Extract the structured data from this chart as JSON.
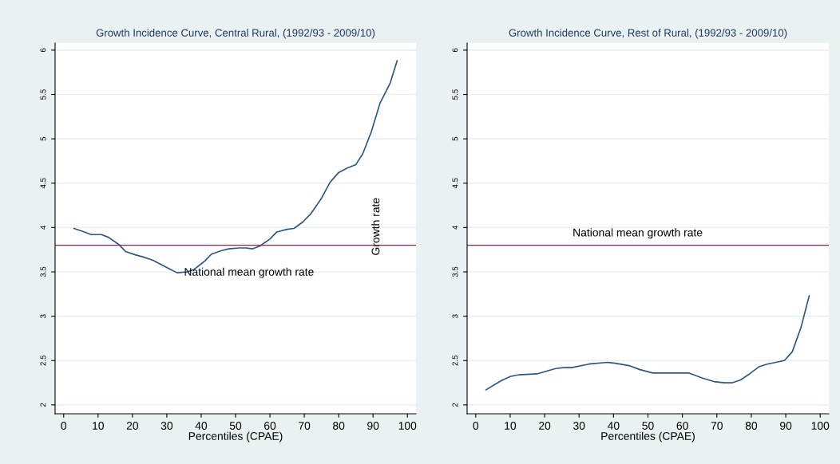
{
  "chart_data": [
    {
      "type": "line",
      "title": "Growth Incidence Curve, Central Rural, (1992/93 - 2009/10)",
      "xlabel": "Percentiles (CPAE)",
      "ylabel": "Growth rate",
      "series": [
        {
          "color": "#2c5784",
          "x": [
            3,
            6,
            8,
            11,
            13,
            16,
            18,
            21,
            23,
            26,
            28,
            31,
            33,
            36,
            38,
            41,
            43,
            46,
            48,
            51,
            53,
            55,
            57,
            60,
            62,
            65,
            67,
            69.5,
            72,
            75,
            77.5,
            80,
            82.5,
            85,
            87,
            89.5,
            92,
            95,
            97
          ],
          "values": [
            3.99,
            3.95,
            3.92,
            3.92,
            3.89,
            3.81,
            3.73,
            3.69,
            3.67,
            3.63,
            3.59,
            3.53,
            3.49,
            3.5,
            3.53,
            3.62,
            3.7,
            3.74,
            3.76,
            3.77,
            3.77,
            3.76,
            3.79,
            3.87,
            3.95,
            3.98,
            3.99,
            4.06,
            4.16,
            4.33,
            4.51,
            4.62,
            4.67,
            4.71,
            4.83,
            5.08,
            5.4,
            5.63,
            5.88
          ]
        }
      ],
      "xlim": [
        -2.5,
        102.5
      ],
      "ylim": [
        1.9,
        6.08
      ],
      "xticks": [
        0,
        10,
        20,
        30,
        40,
        50,
        60,
        70,
        80,
        90,
        100
      ],
      "yticks": [
        2,
        2.5,
        3,
        3.5,
        4,
        4.5,
        5,
        5.5,
        6
      ],
      "grid": "y",
      "ref_lines": [
        {
          "axis": "y",
          "value": 3.8,
          "color": "#a0204a"
        }
      ],
      "annotations": [
        {
          "text": "National mean growth rate",
          "x": 35,
          "y": 3.49
        }
      ]
    },
    {
      "type": "line",
      "title": "Growth Incidence Curve, Rest of Rural, (1992/93 - 2009/10)",
      "xlabel": "Percentiles (CPAE)",
      "series": [
        {
          "color": "#2c5784",
          "x": [
            3,
            7.3,
            10,
            12.6,
            17.8,
            23.2,
            25.5,
            27.8,
            32.8,
            38.2,
            40.5,
            44.8,
            47.5,
            51.4,
            56,
            59.5,
            61.8,
            66,
            69.5,
            72.2,
            74.5,
            76.8,
            79.5,
            82.2,
            84.6,
            89.6,
            91.9,
            94.4,
            96.8
          ],
          "values": [
            2.17,
            2.27,
            2.32,
            2.34,
            2.35,
            2.41,
            2.42,
            2.42,
            2.46,
            2.48,
            2.47,
            2.44,
            2.4,
            2.36,
            2.36,
            2.36,
            2.36,
            2.3,
            2.26,
            2.25,
            2.25,
            2.28,
            2.35,
            2.43,
            2.46,
            2.5,
            2.6,
            2.87,
            3.23
          ]
        }
      ],
      "xlim": [
        -2.5,
        102.5
      ],
      "ylim": [
        1.9,
        6.08
      ],
      "xticks": [
        0,
        10,
        20,
        30,
        40,
        50,
        60,
        70,
        80,
        90,
        100
      ],
      "yticks": [
        2,
        2.5,
        3,
        3.5,
        4,
        4.5,
        5,
        5.5,
        6
      ],
      "grid": "y",
      "ref_lines": [
        {
          "axis": "y",
          "value": 3.8,
          "color": "#a0204a"
        }
      ],
      "annotations": [
        {
          "text": "National mean growth rate",
          "x": 47,
          "y": 3.8
        }
      ]
    }
  ]
}
